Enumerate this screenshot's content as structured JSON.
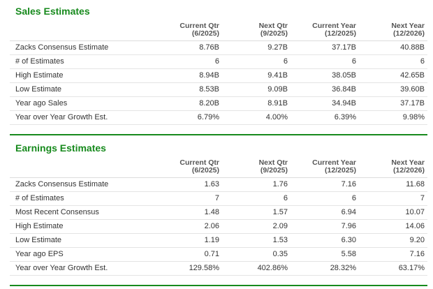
{
  "sales": {
    "title": "Sales Estimates",
    "headers": [
      {
        "line1": "Current Qtr",
        "line2": "(6/2025)"
      },
      {
        "line1": "Next Qtr",
        "line2": "(9/2025)"
      },
      {
        "line1": "Current Year",
        "line2": "(12/2025)"
      },
      {
        "line1": "Next Year",
        "line2": "(12/2026)"
      }
    ],
    "rows": [
      {
        "label": "Zacks Consensus Estimate",
        "values": [
          "8.76B",
          "9.27B",
          "37.17B",
          "40.88B"
        ]
      },
      {
        "label": "# of Estimates",
        "values": [
          "6",
          "6",
          "6",
          "6"
        ]
      },
      {
        "label": "High Estimate",
        "values": [
          "8.94B",
          "9.41B",
          "38.05B",
          "42.65B"
        ]
      },
      {
        "label": "Low Estimate",
        "values": [
          "8.53B",
          "9.09B",
          "36.84B",
          "39.60B"
        ]
      },
      {
        "label": "Year ago Sales",
        "values": [
          "8.20B",
          "8.91B",
          "34.94B",
          "37.17B"
        ]
      },
      {
        "label": "Year over Year Growth Est.",
        "values": [
          "6.79%",
          "4.00%",
          "6.39%",
          "9.98%"
        ]
      }
    ]
  },
  "earnings": {
    "title": "Earnings Estimates",
    "headers": [
      {
        "line1": "Current Qtr",
        "line2": "(6/2025)"
      },
      {
        "line1": "Next Qtr",
        "line2": "(9/2025)"
      },
      {
        "line1": "Current Year",
        "line2": "(12/2025)"
      },
      {
        "line1": "Next Year",
        "line2": "(12/2026)"
      }
    ],
    "rows": [
      {
        "label": "Zacks Consensus Estimate",
        "values": [
          "1.63",
          "1.76",
          "7.16",
          "11.68"
        ]
      },
      {
        "label": "# of Estimates",
        "values": [
          "7",
          "6",
          "6",
          "7"
        ]
      },
      {
        "label": "Most Recent Consensus",
        "values": [
          "1.48",
          "1.57",
          "6.94",
          "10.07"
        ]
      },
      {
        "label": "High Estimate",
        "values": [
          "2.06",
          "2.09",
          "7.96",
          "14.06"
        ]
      },
      {
        "label": "Low Estimate",
        "values": [
          "1.19",
          "1.53",
          "6.30",
          "9.20"
        ]
      },
      {
        "label": "Year ago EPS",
        "values": [
          "0.71",
          "0.35",
          "5.58",
          "7.16"
        ]
      },
      {
        "label": "Year over Year Growth Est.",
        "values": [
          "129.58%",
          "402.86%",
          "28.32%",
          "63.17%"
        ]
      }
    ]
  },
  "colors": {
    "accent": "#178a1d",
    "text": "#333333",
    "row_divider": "#e4e4e4"
  }
}
